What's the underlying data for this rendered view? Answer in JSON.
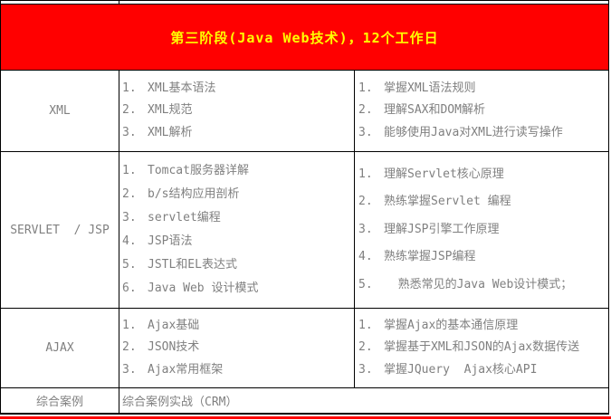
{
  "banner": {
    "title": "第三阶段(Java Web技术)，12个工作日"
  },
  "rows": [
    {
      "category": "XML",
      "topics": [
        {
          "n": "1.",
          "t": "XML基本语法"
        },
        {
          "n": "2.",
          "t": "XML规范"
        },
        {
          "n": "3.",
          "t": "XML解析"
        }
      ],
      "goals": [
        {
          "n": "1.",
          "t": "掌握XML语法规则"
        },
        {
          "n": "2.",
          "t": "理解SAX和DOM解析"
        },
        {
          "n": "3.",
          "t": "能够使用Java对XML进行读写操作"
        }
      ]
    },
    {
      "category": "SERVLET  / JSP",
      "topics": [
        {
          "n": "1.",
          "t": "Tomcat服务器详解"
        },
        {
          "n": "2.",
          "t": "b/s结构应用剖析"
        },
        {
          "n": "3.",
          "t": "servlet编程"
        },
        {
          "n": "4.",
          "t": "JSP语法"
        },
        {
          "n": "5.",
          "t": "JSTL和EL表达式"
        },
        {
          "n": "6.",
          "t": "Java Web 设计模式"
        }
      ],
      "goals": [
        {
          "n": "1.",
          "t": "理解Servlet核心原理"
        },
        {
          "n": "2.",
          "t": "熟练掌握Servlet 编程"
        },
        {
          "n": "3.",
          "t": "理解JSP引擎工作原理"
        },
        {
          "n": "4.",
          "t": "熟练掌握JSP编程"
        },
        {
          "n": "5.",
          "t": "  熟悉常见的Java Web设计模式；"
        }
      ]
    },
    {
      "category": "AJAX",
      "topics": [
        {
          "n": "1.",
          "t": "Ajax基础"
        },
        {
          "n": "2.",
          "t": "JSON技术"
        },
        {
          "n": "3.",
          "t": "Ajax常用框架"
        }
      ],
      "goals": [
        {
          "n": "1.",
          "t": "掌握Ajax的基本通信原理"
        },
        {
          "n": "2.",
          "t": "掌握基于XML和JSON的Ajax数据传送"
        },
        {
          "n": "3.",
          "t": "掌握JQuery  Ajax核心API"
        }
      ]
    }
  ],
  "footer": {
    "category": "综合案例",
    "content": "综合案例实战（CRM）"
  },
  "colors": {
    "banner_bg": "#FF0000",
    "banner_text": "#FFFF00",
    "body_text": "#808080",
    "border": "#000000",
    "bottom_accent": "#FF0000"
  }
}
